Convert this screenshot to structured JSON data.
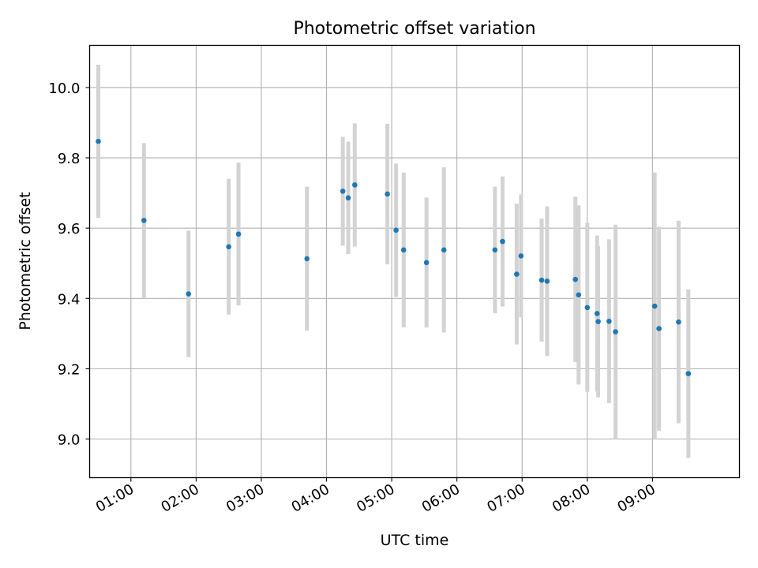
{
  "chart_data": {
    "type": "scatter",
    "title": "Photometric offset variation",
    "xlabel": "UTC time",
    "ylabel": "Photometric offset",
    "x_tick_labels": [
      "01:00",
      "02:00",
      "03:00",
      "04:00",
      "05:00",
      "06:00",
      "07:00",
      "08:00",
      "09:00"
    ],
    "y_tick_labels": [
      "9.0",
      "9.2",
      "9.4",
      "9.6",
      "9.8",
      "10.0"
    ],
    "y_ticks": [
      9.0,
      9.2,
      9.4,
      9.6,
      9.8,
      10.0
    ],
    "xlim": [
      "00:22",
      "10:20"
    ],
    "ylim": [
      8.89,
      10.12
    ],
    "grid": true,
    "marker_color": "#1f77b4",
    "errorbar_color": "#d3d3d3",
    "points": [
      {
        "x": "00:30",
        "y": 9.847,
        "err": 0.218
      },
      {
        "x": "01:12",
        "y": 9.622,
        "err": 0.22
      },
      {
        "x": "01:53",
        "y": 9.413,
        "err": 0.18
      },
      {
        "x": "02:30",
        "y": 9.547,
        "err": 0.193
      },
      {
        "x": "02:39",
        "y": 9.583,
        "err": 0.203
      },
      {
        "x": "03:42",
        "y": 9.513,
        "err": 0.205
      },
      {
        "x": "04:15",
        "y": 9.705,
        "err": 0.155
      },
      {
        "x": "04:20",
        "y": 9.686,
        "err": 0.16
      },
      {
        "x": "04:26",
        "y": 9.723,
        "err": 0.175
      },
      {
        "x": "04:56",
        "y": 9.697,
        "err": 0.2
      },
      {
        "x": "05:04",
        "y": 9.594,
        "err": 0.19
      },
      {
        "x": "05:11",
        "y": 9.538,
        "err": 0.22
      },
      {
        "x": "05:32",
        "y": 9.502,
        "err": 0.185
      },
      {
        "x": "05:48",
        "y": 9.538,
        "err": 0.235
      },
      {
        "x": "06:35",
        "y": 9.538,
        "err": 0.18
      },
      {
        "x": "06:42",
        "y": 9.562,
        "err": 0.185
      },
      {
        "x": "06:55",
        "y": 9.469,
        "err": 0.2
      },
      {
        "x": "06:59",
        "y": 9.521,
        "err": 0.175
      },
      {
        "x": "07:18",
        "y": 9.452,
        "err": 0.175
      },
      {
        "x": "07:23",
        "y": 9.449,
        "err": 0.213
      },
      {
        "x": "07:49",
        "y": 9.454,
        "err": 0.235
      },
      {
        "x": "07:52",
        "y": 9.41,
        "err": 0.255
      },
      {
        "x": "08:00",
        "y": 9.374,
        "err": 0.24
      },
      {
        "x": "08:09",
        "y": 9.357,
        "err": 0.222
      },
      {
        "x": "08:10",
        "y": 9.334,
        "err": 0.215
      },
      {
        "x": "08:20",
        "y": 9.335,
        "err": 0.233
      },
      {
        "x": "08:26",
        "y": 9.305,
        "err": 0.305
      },
      {
        "x": "09:02",
        "y": 9.378,
        "err": 0.38
      },
      {
        "x": "09:06",
        "y": 9.314,
        "err": 0.29
      },
      {
        "x": "09:24",
        "y": 9.333,
        "err": 0.288
      },
      {
        "x": "09:33",
        "y": 9.186,
        "err": 0.24
      }
    ]
  }
}
